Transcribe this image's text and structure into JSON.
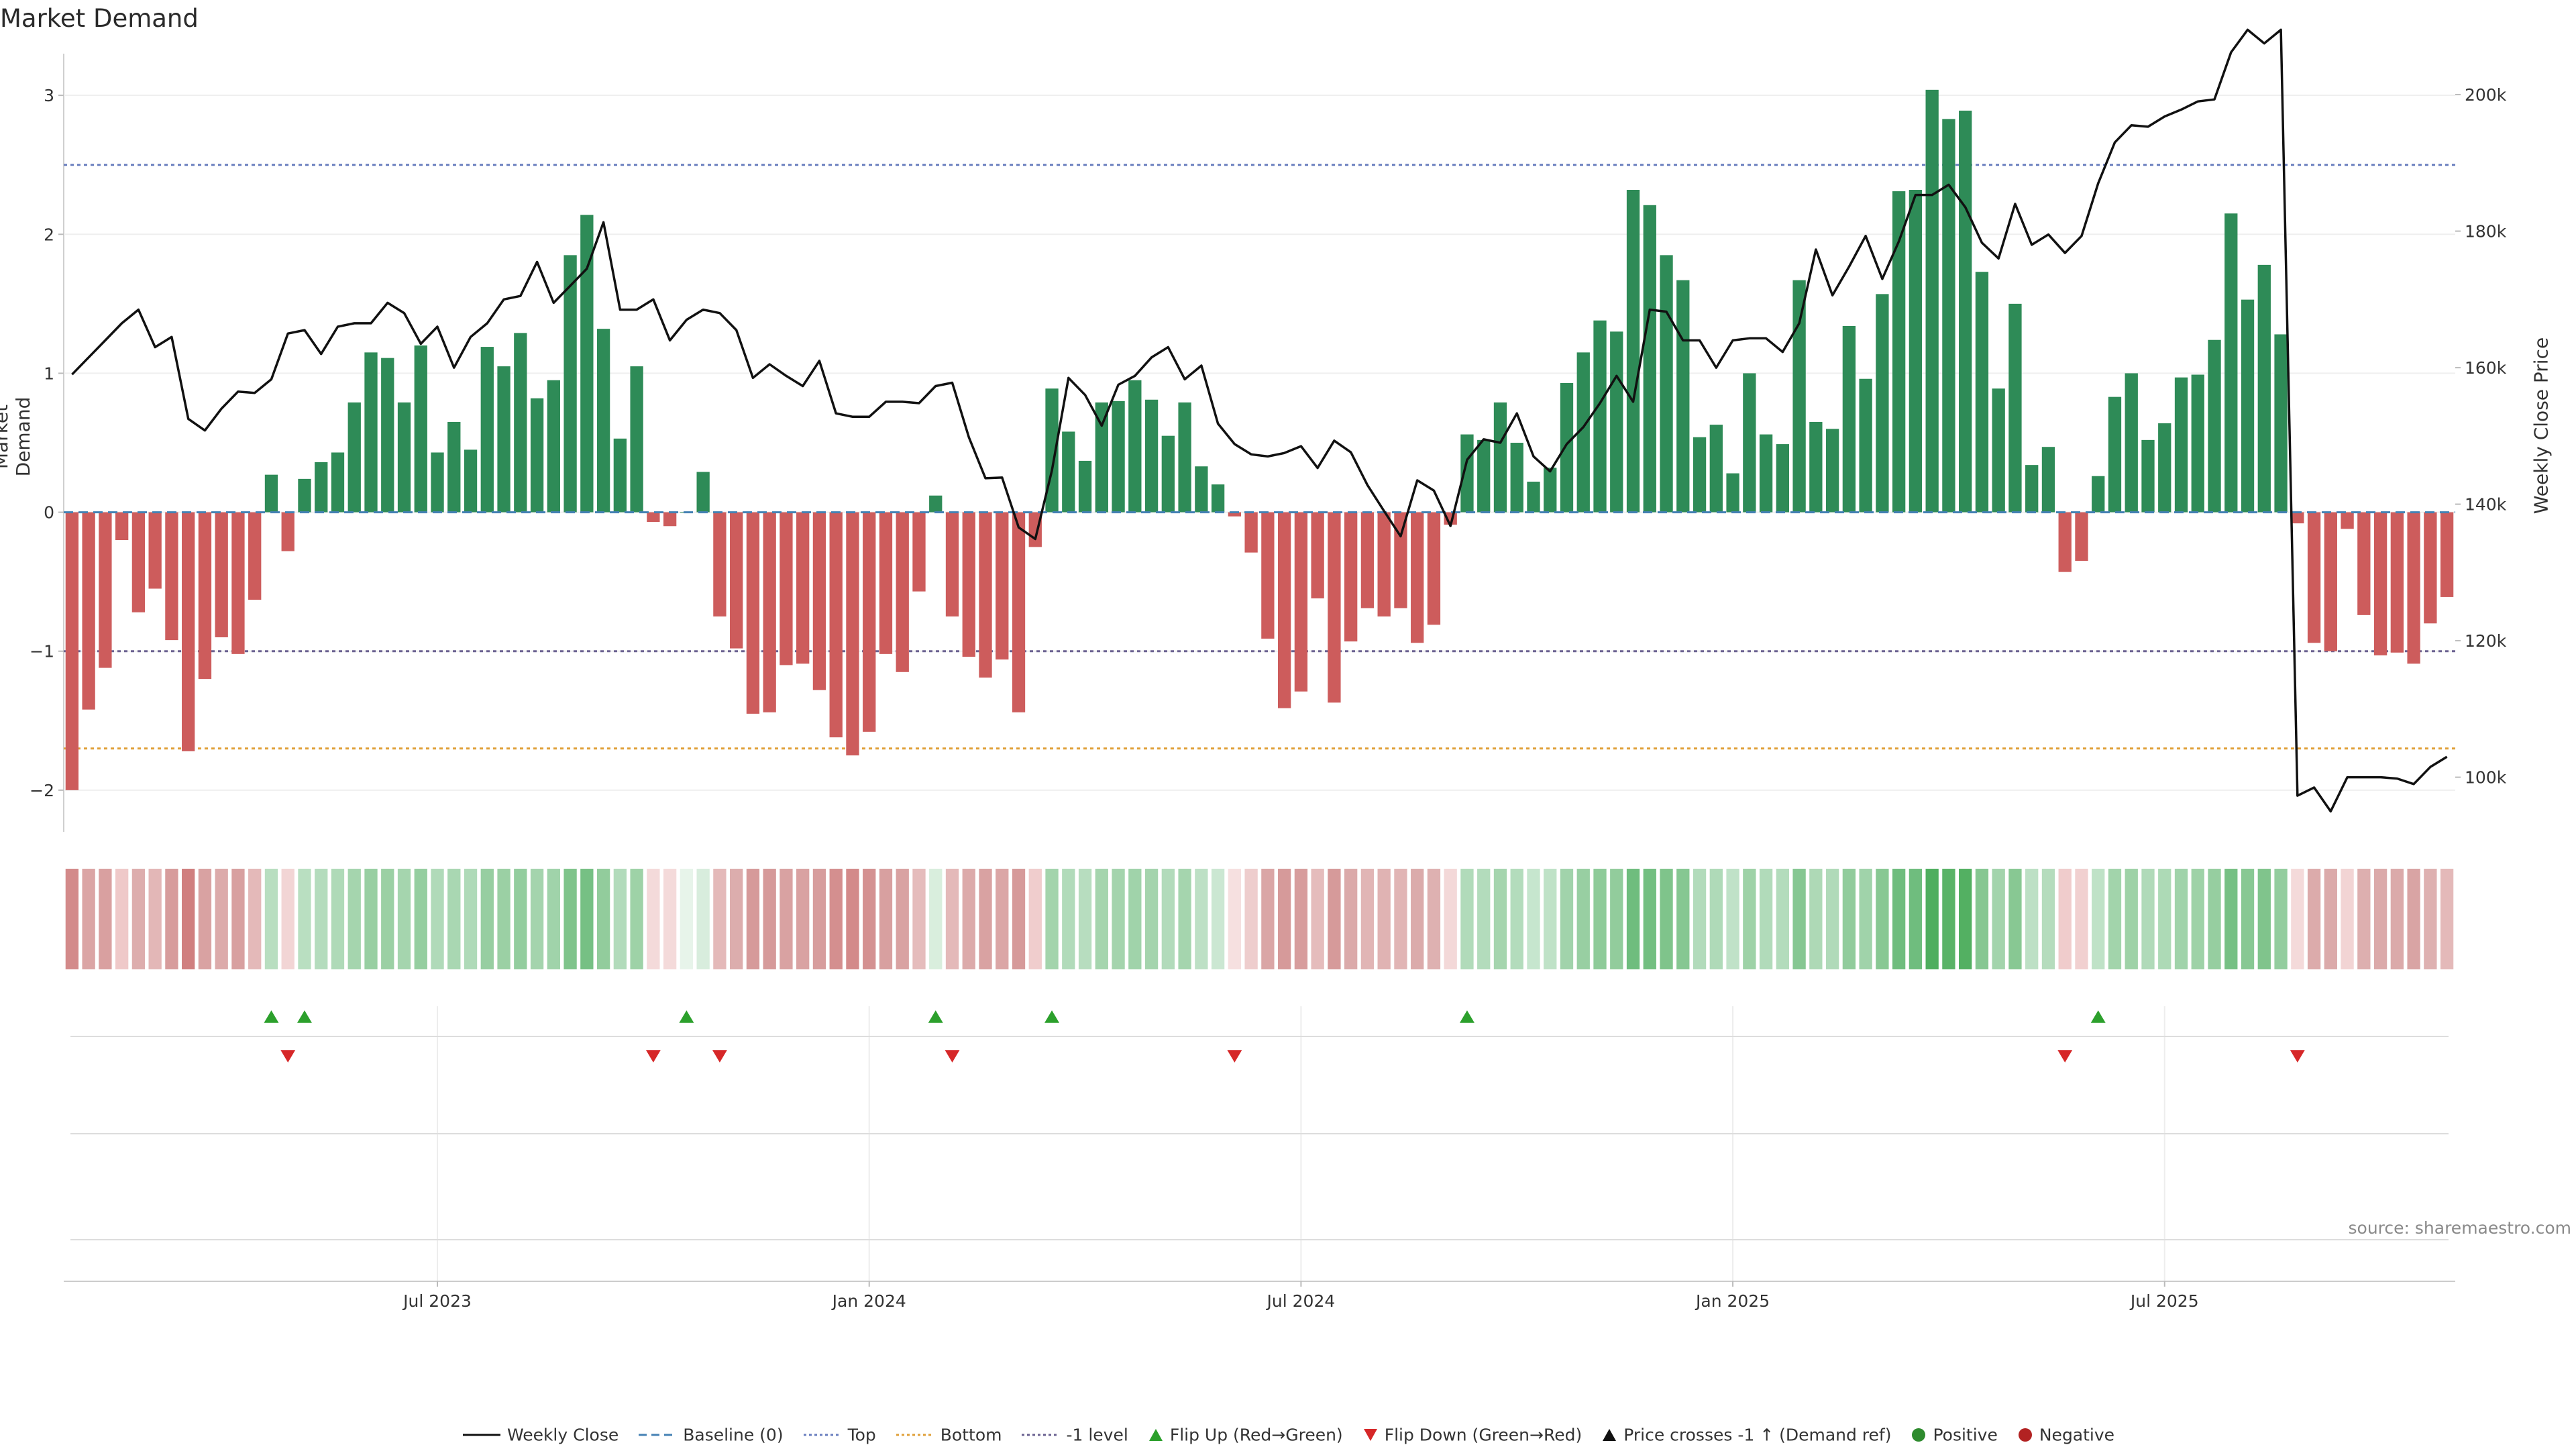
{
  "title": "Market Demand",
  "source": "source: sharemaestro.com",
  "chart_data": {
    "type": "bar",
    "left_axis": {
      "label": "Market Demand",
      "ylim": [
        -2.3,
        3.3
      ],
      "ticks": [
        -2,
        -1,
        0,
        1,
        2,
        3
      ],
      "tick_labels": [
        "−2",
        "−1",
        "0",
        "1",
        "2",
        "3"
      ]
    },
    "right_axis": {
      "label": "Weekly Close Price",
      "ylim": [
        92000,
        206000
      ],
      "ticks": [
        100000,
        120000,
        140000,
        160000,
        180000,
        200000
      ],
      "tick_labels": [
        "100k",
        "120k",
        "140k",
        "160k",
        "180k",
        "200k"
      ]
    },
    "x_axis": {
      "start": "2023-01-06",
      "end": "2025-10-31",
      "tick_labels": [
        "Jul 2023",
        "Jan 2024",
        "Jul 2024",
        "Jan 2025",
        "Jul 2025"
      ],
      "tick_weeks": [
        22,
        48,
        74,
        100,
        126
      ]
    },
    "reference_lines": [
      {
        "name": "Top",
        "value": 2.5,
        "color": "#6a7fbf"
      },
      {
        "name": "Bottom",
        "value": -1.7,
        "color": "#e0a13a"
      },
      {
        "name": "-1 level",
        "value": -1.0,
        "color": "#6b6291"
      }
    ],
    "demand": [
      -2.0,
      -1.42,
      -1.12,
      -0.2,
      -0.72,
      -0.55,
      -0.92,
      -1.72,
      -1.2,
      -0.9,
      -1.02,
      -0.63,
      0.27,
      -0.28,
      0.24,
      0.36,
      0.43,
      0.79,
      1.15,
      1.11,
      0.79,
      1.2,
      0.43,
      0.65,
      0.45,
      1.19,
      1.05,
      1.29,
      0.82,
      0.95,
      1.85,
      2.14,
      1.32,
      0.53,
      1.05,
      -0.07,
      -0.1,
      0.0,
      0.29,
      -0.75,
      -0.98,
      -1.45,
      -1.44,
      -1.1,
      -1.09,
      -1.28,
      -1.62,
      -1.75,
      -1.58,
      -1.02,
      -1.15,
      -0.57,
      0.12,
      -0.75,
      -1.04,
      -1.19,
      -1.06,
      -1.44,
      -0.25,
      0.89,
      0.58,
      0.37,
      0.79,
      0.8,
      0.95,
      0.81,
      0.55,
      0.79,
      0.33,
      0.2,
      -0.03,
      -0.29,
      -0.91,
      -1.41,
      -1.29,
      -0.62,
      -1.37,
      -0.93,
      -0.69,
      -0.75,
      -0.69,
      -0.94,
      -0.81,
      -0.09,
      0.56,
      0.52,
      0.79,
      0.5,
      0.22,
      0.32,
      0.93,
      1.15,
      1.38,
      1.3,
      2.32,
      2.21,
      1.85,
      1.67,
      0.54,
      0.63,
      0.28,
      1.0,
      0.56,
      0.49,
      1.67,
      0.65,
      0.6,
      1.34,
      0.96,
      1.57,
      2.31,
      2.32,
      3.04,
      2.83,
      2.89,
      1.73,
      0.89,
      1.5,
      0.34,
      0.47,
      -0.43,
      -0.35,
      0.26,
      0.83,
      1.0,
      0.52,
      0.64,
      0.97,
      0.99,
      1.24,
      2.15,
      1.53,
      1.78,
      1.28,
      -0.08,
      -0.94,
      -1.0,
      -0.12,
      -0.74,
      -1.03,
      -1.01,
      -1.09,
      -0.8,
      -0.61
    ],
    "weekly_close": [
      159000,
      161500,
      164000,
      166500,
      168500,
      163000,
      164500,
      152500,
      150800,
      154000,
      156500,
      156300,
      158300,
      165000,
      165500,
      162000,
      166000,
      166500,
      166500,
      169500,
      168000,
      163500,
      166000,
      160000,
      164500,
      166500,
      170000,
      170500,
      175500,
      169500,
      172000,
      174500,
      181300,
      168500,
      168500,
      170000,
      164000,
      167000,
      168500,
      168000,
      165500,
      158500,
      160500,
      158800,
      157300,
      161000,
      153300,
      152800,
      152800,
      155000,
      155000,
      154800,
      157300,
      157800,
      149800,
      143800,
      143900,
      136600,
      134900,
      144900,
      158500,
      156000,
      151500,
      157500,
      158800,
      161500,
      163000,
      158300,
      160300,
      151800,
      148800,
      147300,
      147000,
      147500,
      148500,
      145300,
      149300,
      147600,
      142800,
      139000,
      135300,
      143500,
      142000,
      136800,
      146500,
      149500,
      149000,
      153300,
      147000,
      144800,
      148800,
      151300,
      154800,
      158800,
      155000,
      168500,
      168200,
      164000,
      164000,
      160000,
      164000,
      164300,
      164300,
      162300,
      166500,
      177300,
      170600,
      174800,
      179300,
      173000,
      178500,
      185300,
      185300,
      186800,
      183500,
      178300,
      176000,
      184000,
      178000,
      179500,
      176800,
      179300,
      187000,
      193000,
      195500,
      195300,
      196800,
      197800,
      199000,
      199300,
      206200,
      209500,
      207500,
      209500,
      97300,
      98500,
      95000,
      100000,
      100000,
      100000,
      99800,
      99000,
      101500,
      103000
    ],
    "strip_colors": [
      "#d38a8a",
      "#dba5a5",
      "#d9a0a0",
      "#efc9c9",
      "#ddadad",
      "#e3b7b7",
      "#d79c9c",
      "#d07f7f",
      "#d9a2a2",
      "#dcaaaa",
      "#d8a0a0",
      "#e4b9b9",
      "#b8dec0",
      "#f2d5d5",
      "#b9dfc1",
      "#b4dcbd",
      "#afdab8",
      "#a5d5ae",
      "#98cfa2",
      "#9bd0a4",
      "#a5d5ae",
      "#95cea0",
      "#b0dab9",
      "#a9d7b2",
      "#afdab8",
      "#97cea1",
      "#9bd0a4",
      "#93cd9e",
      "#a4d4ad",
      "#a0d3aa",
      "#7fc48b",
      "#76c084",
      "#92cc9c",
      "#b2dbbb",
      "#9ed2a7",
      "#f4dada",
      "#f4dada",
      "#e7f4ea",
      "#d8eddd",
      "#e4b9b9",
      "#dcadad",
      "#d69a9a",
      "#d69a9a",
      "#d9a2a2",
      "#d9a2a2",
      "#d79d9d",
      "#d48f8f",
      "#d38a8a",
      "#d49191",
      "#d8a0a0",
      "#d9a2a2",
      "#e5bcbc",
      "#d9eedd",
      "#e4b9b9",
      "#dcaaaa",
      "#d9a2a2",
      "#dba6a6",
      "#d69a9a",
      "#f0cdcd",
      "#a3d4ac",
      "#b1dbba",
      "#b7ddbf",
      "#a5d5ae",
      "#a4d4ad",
      "#a0d3aa",
      "#a4d4ad",
      "#b2dbbb",
      "#a5d5ae",
      "#bde0c5",
      "#cbe7d2",
      "#f6e0e0",
      "#eecdcd",
      "#daa6a6",
      "#d69a9a",
      "#d79d9d",
      "#e5bcbc",
      "#d69a9a",
      "#dbaaaa",
      "#e1b5b5",
      "#e0b3b3",
      "#e1b5b5",
      "#dbabab",
      "#deb1b1",
      "#f3d8d8",
      "#b1dbba",
      "#b3dcbc",
      "#a5d5ae",
      "#b3dcbc",
      "#c6e6ce",
      "#bfe2c7",
      "#a1d3ab",
      "#98cfa2",
      "#8ecb99",
      "#92cc9c",
      "#6fbd7e",
      "#73bf81",
      "#7fc48b",
      "#86c792",
      "#b2dbbb",
      "#afdab8",
      "#c0e2c8",
      "#9ed2a7",
      "#b1dbba",
      "#b3dcbc",
      "#86c792",
      "#aed9b6",
      "#b0dab9",
      "#91cc9c",
      "#a0d3aa",
      "#88c893",
      "#6fbd7e",
      "#6fbd7e",
      "#4fae5f",
      "#5ab367",
      "#53b062",
      "#86c792",
      "#a3d4ac",
      "#88c893",
      "#bde0c5",
      "#b5dcbd",
      "#f0cccc",
      "#f1d0d0",
      "#bfe2c7",
      "#a2d4ab",
      "#9ed2a7",
      "#b0dab9",
      "#adda b6",
      "#a0d3aa",
      "#9ed2a7",
      "#96cea0",
      "#76c084",
      "#88c893",
      "#80c48c",
      "#93cd9e",
      "#f4dada",
      "#dcabab",
      "#dbaaaa",
      "#f2d4d4",
      "#ddafaf",
      "#dbaaaa",
      "#dbaaaa",
      "#d9a4a4",
      "#deb1b1",
      "#e4b9b9"
    ],
    "flip_up_weeks": [
      12,
      14,
      37,
      52,
      59,
      84,
      122
    ],
    "flip_down_weeks": [
      13,
      35,
      39,
      53,
      70,
      120,
      134
    ],
    "series_colors": {
      "positive": "#2e8b57",
      "negative": "#cd5c5c",
      "close": "#111111",
      "baseline": "#4682b4",
      "flip_up": "#2ca02c",
      "flip_down": "#d62728"
    }
  },
  "legend": [
    {
      "label": "Weekly Close",
      "kind": "line",
      "color": "#111111"
    },
    {
      "label": "Baseline (0)",
      "kind": "dashed",
      "color": "#4682b4"
    },
    {
      "label": "Top",
      "kind": "dotted",
      "color": "#6a7fbf"
    },
    {
      "label": "Bottom",
      "kind": "dotted",
      "color": "#e0a13a"
    },
    {
      "label": "-1 level",
      "kind": "dotted",
      "color": "#6b6291"
    },
    {
      "label": "Flip Up (Red→Green)",
      "kind": "tri-up",
      "color": "#2ca02c"
    },
    {
      "label": "Flip Down (Green→Red)",
      "kind": "tri-down",
      "color": "#d62728"
    },
    {
      "label": "Price crosses -1 ↑ (Demand ref)",
      "kind": "tri-up",
      "color": "#111111"
    },
    {
      "label": "Positive",
      "kind": "dot",
      "color": "#2e8b2e"
    },
    {
      "label": "Negative",
      "kind": "dot",
      "color": "#b22222"
    }
  ]
}
